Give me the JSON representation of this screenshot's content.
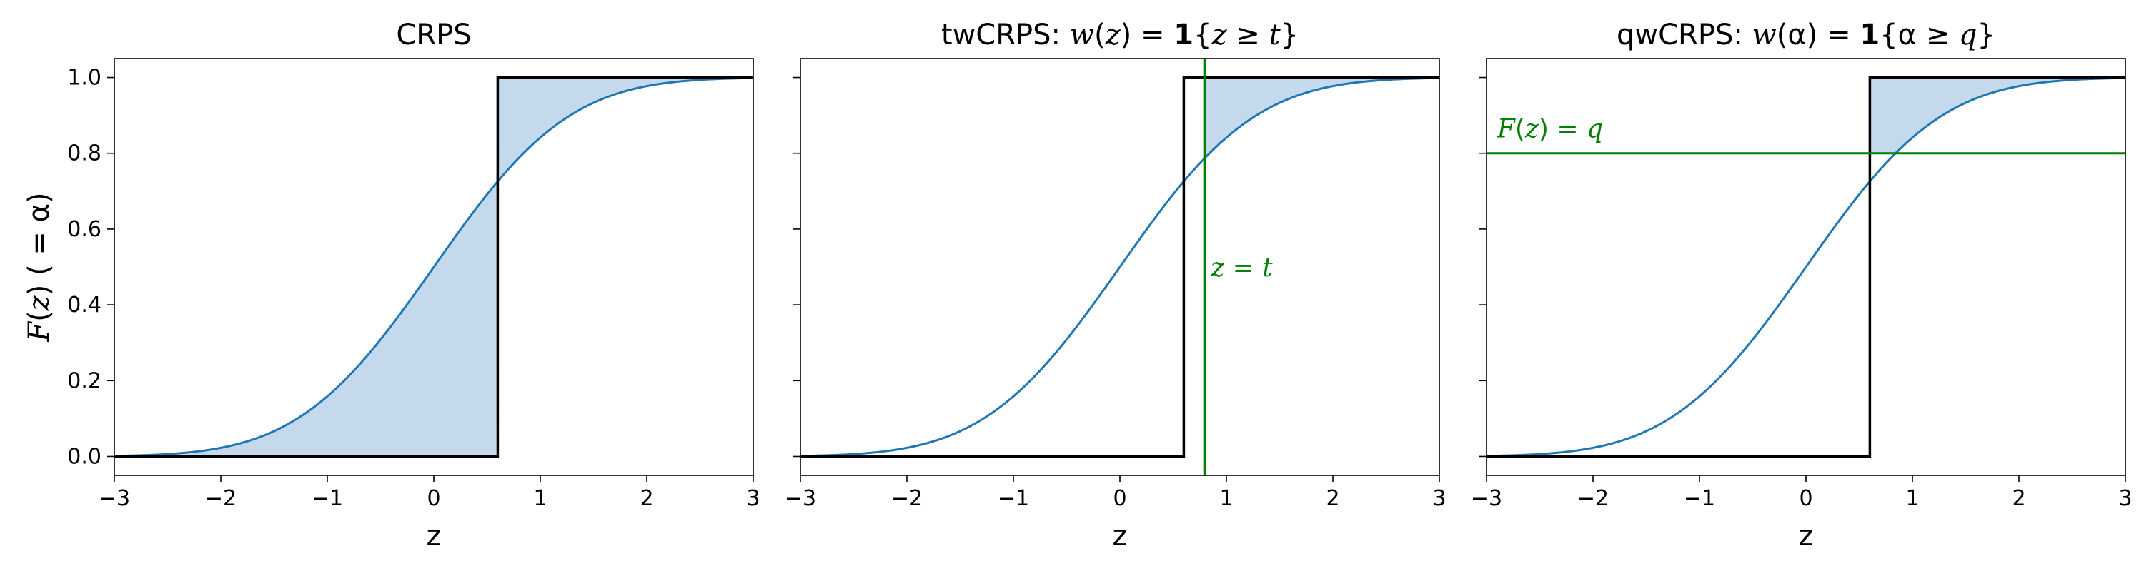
{
  "chart_data": [
    {
      "type": "line",
      "title": "CRPS",
      "xlabel": "z",
      "ylabel": "F(z)  ( = α)",
      "xlim": [
        -3,
        3
      ],
      "ylim": [
        -0.05,
        1.05
      ],
      "xticks": [
        -3,
        -2,
        -1,
        0,
        1,
        2,
        3
      ],
      "yticks": [
        0.0,
        0.2,
        0.4,
        0.6,
        0.8,
        1.0
      ],
      "xtick_labels": [
        "−3",
        "−2",
        "−1",
        "0",
        "1",
        "2",
        "3"
      ],
      "ytick_labels": [
        "0.0",
        "0.2",
        "0.4",
        "0.6",
        "0.8",
        "1.0"
      ],
      "series": [
        {
          "kind": "normal-cdf",
          "mean": 0,
          "sd": 1,
          "color": "#1f77b4"
        },
        {
          "kind": "step",
          "at": 0.6,
          "color": "#000000"
        }
      ],
      "shade": {
        "region": "full",
        "color": "#c5d9ec"
      }
    },
    {
      "type": "line",
      "title": "twCRPS: w(z) = 1{z ≥ t}",
      "xlabel": "z",
      "xlim": [
        -3,
        3
      ],
      "ylim": [
        -0.05,
        1.05
      ],
      "xticks": [
        -3,
        -2,
        -1,
        0,
        1,
        2,
        3
      ],
      "yticks": [
        0.0,
        0.2,
        0.4,
        0.6,
        0.8,
        1.0
      ],
      "xtick_labels": [
        "−3",
        "−2",
        "−1",
        "0",
        "1",
        "2",
        "3"
      ],
      "ytick_labels": [],
      "series": [
        {
          "kind": "normal-cdf",
          "mean": 0,
          "sd": 1,
          "color": "#1f77b4"
        },
        {
          "kind": "step",
          "at": 0.6,
          "color": "#000000"
        }
      ],
      "threshold": {
        "orientation": "vertical",
        "value": 0.8,
        "label": "z = t",
        "label_y": 0.5,
        "color": "#008000"
      },
      "shade": {
        "region": "x-above",
        "value": 0.8,
        "color": "#c5d9ec"
      }
    },
    {
      "type": "line",
      "title": "qwCRPS: w(α) = 1{α ≥ q}",
      "xlabel": "z",
      "xlim": [
        -3,
        3
      ],
      "ylim": [
        -0.05,
        1.05
      ],
      "xticks": [
        -3,
        -2,
        -1,
        0,
        1,
        2,
        3
      ],
      "yticks": [
        0.0,
        0.2,
        0.4,
        0.6,
        0.8,
        1.0
      ],
      "xtick_labels": [
        "−3",
        "−2",
        "−1",
        "0",
        "1",
        "2",
        "3"
      ],
      "ytick_labels": [],
      "series": [
        {
          "kind": "normal-cdf",
          "mean": 0,
          "sd": 1,
          "color": "#1f77b4"
        },
        {
          "kind": "step",
          "at": 0.6,
          "color": "#000000"
        }
      ],
      "threshold": {
        "orientation": "horizontal",
        "value": 0.8,
        "label": "F(z) = q",
        "label_x": -2.9,
        "color": "#008000"
      },
      "shade": {
        "region": "y-above",
        "value": 0.8,
        "color": "#c5d9ec"
      }
    }
  ]
}
